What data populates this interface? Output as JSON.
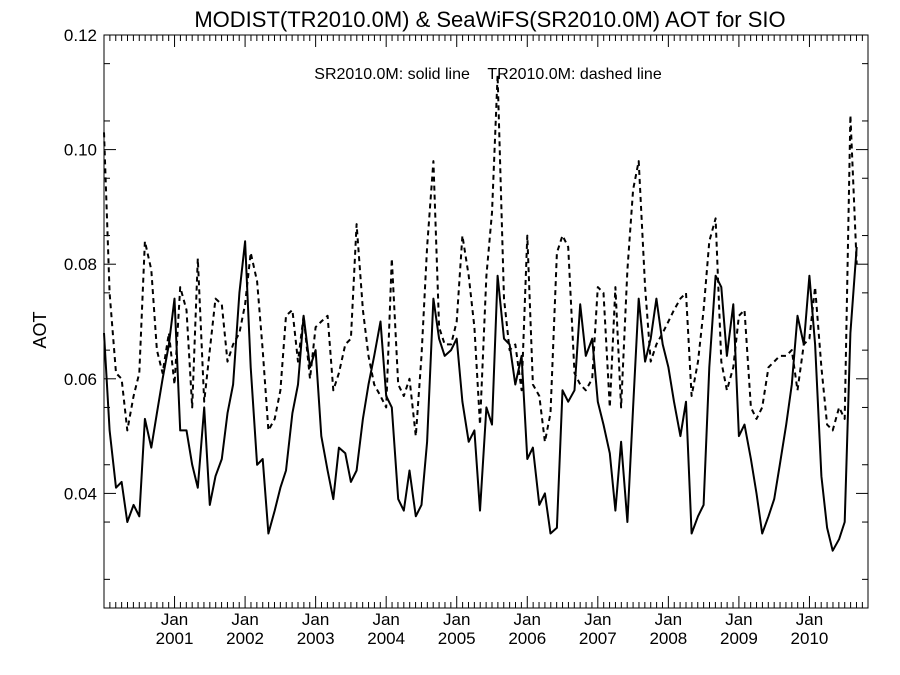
{
  "chart_data": {
    "type": "line",
    "title": "MODIST(TR2010.0M) & SeaWiFS(SR2010.0M)  AOT for SIO",
    "annotation": "SR2010.0M: solid line    TR2010.0M: dashed line",
    "ylabel": "AOT",
    "xlabel": "",
    "xlim": [
      2000.0,
      2010.83
    ],
    "ylim": [
      0.02,
      0.12
    ],
    "yticks": [
      {
        "value": 0.04,
        "label": "0.04"
      },
      {
        "value": 0.06,
        "label": "0.06"
      },
      {
        "value": 0.08,
        "label": "0.08"
      },
      {
        "value": 0.1,
        "label": "0.10"
      },
      {
        "value": 0.12,
        "label": "0.12"
      }
    ],
    "xticks": [
      {
        "value": 2001.0,
        "month": "Jan",
        "year": "2001"
      },
      {
        "value": 2002.0,
        "month": "Jan",
        "year": "2002"
      },
      {
        "value": 2003.0,
        "month": "Jan",
        "year": "2003"
      },
      {
        "value": 2004.0,
        "month": "Jan",
        "year": "2004"
      },
      {
        "value": 2005.0,
        "month": "Jan",
        "year": "2005"
      },
      {
        "value": 2006.0,
        "month": "Jan",
        "year": "2006"
      },
      {
        "value": 2007.0,
        "month": "Jan",
        "year": "2007"
      },
      {
        "value": 2008.0,
        "month": "Jan",
        "year": "2008"
      },
      {
        "value": 2009.0,
        "month": "Jan",
        "year": "2009"
      },
      {
        "value": 2010.0,
        "month": "Jan",
        "year": "2010"
      }
    ],
    "series": [
      {
        "style": "solid",
        "points": [
          [
            2000.0,
            0.068
          ],
          [
            2000.08,
            0.051
          ],
          [
            2000.17,
            0.041
          ],
          [
            2000.25,
            0.042
          ],
          [
            2000.33,
            0.035
          ],
          [
            2000.42,
            0.038
          ],
          [
            2000.5,
            0.036
          ],
          [
            2000.58,
            0.053
          ],
          [
            2000.67,
            0.048
          ],
          [
            2000.75,
            0.054
          ],
          [
            2000.83,
            0.06
          ],
          [
            2000.92,
            0.066
          ],
          [
            2001.0,
            0.074
          ],
          [
            2001.08,
            0.051
          ],
          [
            2001.17,
            0.051
          ],
          [
            2001.25,
            0.045
          ],
          [
            2001.33,
            0.041
          ],
          [
            2001.42,
            0.055
          ],
          [
            2001.5,
            0.038
          ],
          [
            2001.58,
            0.043
          ],
          [
            2001.67,
            0.046
          ],
          [
            2001.75,
            0.054
          ],
          [
            2001.83,
            0.059
          ],
          [
            2001.92,
            0.075
          ],
          [
            2002.0,
            0.084
          ],
          [
            2002.08,
            0.062
          ],
          [
            2002.17,
            0.045
          ],
          [
            2002.25,
            0.046
          ],
          [
            2002.33,
            0.033
          ],
          [
            2002.42,
            0.037
          ],
          [
            2002.5,
            0.041
          ],
          [
            2002.58,
            0.044
          ],
          [
            2002.67,
            0.054
          ],
          [
            2002.75,
            0.059
          ],
          [
            2002.83,
            0.071
          ],
          [
            2002.92,
            0.062
          ],
          [
            2003.0,
            0.065
          ],
          [
            2003.08,
            0.05
          ],
          [
            2003.17,
            0.044
          ],
          [
            2003.25,
            0.039
          ],
          [
            2003.33,
            0.048
          ],
          [
            2003.42,
            0.047
          ],
          [
            2003.5,
            0.042
          ],
          [
            2003.58,
            0.044
          ],
          [
            2003.67,
            0.053
          ],
          [
            2003.75,
            0.059
          ],
          [
            2003.83,
            0.064
          ],
          [
            2003.92,
            0.07
          ],
          [
            2004.0,
            0.057
          ],
          [
            2004.08,
            0.055
          ],
          [
            2004.17,
            0.039
          ],
          [
            2004.25,
            0.037
          ],
          [
            2004.33,
            0.044
          ],
          [
            2004.42,
            0.036
          ],
          [
            2004.5,
            0.038
          ],
          [
            2004.58,
            0.049
          ],
          [
            2004.67,
            0.074
          ],
          [
            2004.75,
            0.067
          ],
          [
            2004.83,
            0.064
          ],
          [
            2004.92,
            0.065
          ],
          [
            2005.0,
            0.067
          ],
          [
            2005.08,
            0.056
          ],
          [
            2005.17,
            0.049
          ],
          [
            2005.25,
            0.051
          ],
          [
            2005.33,
            0.037
          ],
          [
            2005.42,
            0.055
          ],
          [
            2005.5,
            0.052
          ],
          [
            2005.58,
            0.078
          ],
          [
            2005.67,
            0.067
          ],
          [
            2005.75,
            0.066
          ],
          [
            2005.83,
            0.059
          ],
          [
            2005.92,
            0.064
          ],
          [
            2006.0,
            0.046
          ],
          [
            2006.08,
            0.048
          ],
          [
            2006.17,
            0.038
          ],
          [
            2006.25,
            0.04
          ],
          [
            2006.33,
            0.033
          ],
          [
            2006.42,
            0.034
          ],
          [
            2006.5,
            0.058
          ],
          [
            2006.58,
            0.056
          ],
          [
            2006.67,
            0.058
          ],
          [
            2006.75,
            0.073
          ],
          [
            2006.83,
            0.064
          ],
          [
            2006.92,
            0.067
          ],
          [
            2007.0,
            0.056
          ],
          [
            2007.08,
            0.052
          ],
          [
            2007.17,
            0.047
          ],
          [
            2007.25,
            0.037
          ],
          [
            2007.33,
            0.049
          ],
          [
            2007.42,
            0.035
          ],
          [
            2007.5,
            0.055
          ],
          [
            2007.58,
            0.074
          ],
          [
            2007.67,
            0.063
          ],
          [
            2007.75,
            0.067
          ],
          [
            2007.83,
            0.074
          ],
          [
            2007.92,
            0.066
          ],
          [
            2008.0,
            0.062
          ],
          [
            2008.08,
            0.056
          ],
          [
            2008.17,
            0.05
          ],
          [
            2008.25,
            0.056
          ],
          [
            2008.33,
            0.033
          ],
          [
            2008.42,
            0.036
          ],
          [
            2008.5,
            0.038
          ],
          [
            2008.58,
            0.062
          ],
          [
            2008.67,
            0.078
          ],
          [
            2008.75,
            0.076
          ],
          [
            2008.83,
            0.064
          ],
          [
            2008.92,
            0.073
          ],
          [
            2009.0,
            0.05
          ],
          [
            2009.08,
            0.052
          ],
          [
            2009.17,
            0.046
          ],
          [
            2009.25,
            0.04
          ],
          [
            2009.33,
            0.033
          ],
          [
            2009.42,
            0.036
          ],
          [
            2009.5,
            0.039
          ],
          [
            2009.58,
            0.045
          ],
          [
            2009.67,
            0.052
          ],
          [
            2009.75,
            0.059
          ],
          [
            2009.83,
            0.071
          ],
          [
            2009.92,
            0.066
          ],
          [
            2010.0,
            0.078
          ],
          [
            2010.08,
            0.066
          ],
          [
            2010.17,
            0.043
          ],
          [
            2010.25,
            0.034
          ],
          [
            2010.33,
            0.03
          ],
          [
            2010.42,
            0.032
          ],
          [
            2010.5,
            0.035
          ],
          [
            2010.58,
            0.068
          ],
          [
            2010.67,
            0.083
          ]
        ]
      },
      {
        "style": "dashed",
        "points": [
          [
            2000.0,
            0.103
          ],
          [
            2000.08,
            0.075
          ],
          [
            2000.17,
            0.061
          ],
          [
            2000.25,
            0.06
          ],
          [
            2000.33,
            0.051
          ],
          [
            2000.42,
            0.057
          ],
          [
            2000.5,
            0.061
          ],
          [
            2000.58,
            0.084
          ],
          [
            2000.67,
            0.079
          ],
          [
            2000.75,
            0.065
          ],
          [
            2000.83,
            0.061
          ],
          [
            2000.92,
            0.068
          ],
          [
            2001.0,
            0.059
          ],
          [
            2001.08,
            0.076
          ],
          [
            2001.17,
            0.072
          ],
          [
            2001.25,
            0.055
          ],
          [
            2001.33,
            0.081
          ],
          [
            2001.42,
            0.056
          ],
          [
            2001.5,
            0.065
          ],
          [
            2001.58,
            0.074
          ],
          [
            2001.67,
            0.073
          ],
          [
            2001.75,
            0.063
          ],
          [
            2001.83,
            0.066
          ],
          [
            2001.92,
            0.068
          ],
          [
            2002.0,
            0.073
          ],
          [
            2002.08,
            0.082
          ],
          [
            2002.17,
            0.077
          ],
          [
            2002.25,
            0.065
          ],
          [
            2002.33,
            0.051
          ],
          [
            2002.42,
            0.053
          ],
          [
            2002.5,
            0.058
          ],
          [
            2002.58,
            0.071
          ],
          [
            2002.67,
            0.072
          ],
          [
            2002.75,
            0.063
          ],
          [
            2002.83,
            0.071
          ],
          [
            2002.92,
            0.06
          ],
          [
            2003.0,
            0.069
          ],
          [
            2003.08,
            0.07
          ],
          [
            2003.17,
            0.071
          ],
          [
            2003.25,
            0.058
          ],
          [
            2003.33,
            0.061
          ],
          [
            2003.42,
            0.066
          ],
          [
            2003.5,
            0.067
          ],
          [
            2003.58,
            0.087
          ],
          [
            2003.67,
            0.072
          ],
          [
            2003.75,
            0.064
          ],
          [
            2003.83,
            0.059
          ],
          [
            2003.92,
            0.057
          ],
          [
            2004.0,
            0.055
          ],
          [
            2004.08,
            0.081
          ],
          [
            2004.17,
            0.059
          ],
          [
            2004.25,
            0.057
          ],
          [
            2004.33,
            0.06
          ],
          [
            2004.42,
            0.05
          ],
          [
            2004.5,
            0.064
          ],
          [
            2004.58,
            0.083
          ],
          [
            2004.67,
            0.098
          ],
          [
            2004.75,
            0.069
          ],
          [
            2004.83,
            0.066
          ],
          [
            2004.92,
            0.066
          ],
          [
            2005.0,
            0.07
          ],
          [
            2005.08,
            0.085
          ],
          [
            2005.17,
            0.078
          ],
          [
            2005.25,
            0.069
          ],
          [
            2005.33,
            0.052
          ],
          [
            2005.42,
            0.078
          ],
          [
            2005.5,
            0.089
          ],
          [
            2005.58,
            0.113
          ],
          [
            2005.67,
            0.074
          ],
          [
            2005.75,
            0.065
          ],
          [
            2005.83,
            0.066
          ],
          [
            2005.92,
            0.058
          ],
          [
            2006.0,
            0.085
          ],
          [
            2006.08,
            0.059
          ],
          [
            2006.17,
            0.057
          ],
          [
            2006.25,
            0.049
          ],
          [
            2006.33,
            0.054
          ],
          [
            2006.42,
            0.082
          ],
          [
            2006.5,
            0.085
          ],
          [
            2006.58,
            0.083
          ],
          [
            2006.67,
            0.061
          ],
          [
            2006.75,
            0.059
          ],
          [
            2006.83,
            0.058
          ],
          [
            2006.92,
            0.06
          ],
          [
            2007.0,
            0.076
          ],
          [
            2007.08,
            0.075
          ],
          [
            2007.17,
            0.055
          ],
          [
            2007.25,
            0.076
          ],
          [
            2007.33,
            0.055
          ],
          [
            2007.42,
            0.079
          ],
          [
            2007.5,
            0.093
          ],
          [
            2007.58,
            0.098
          ],
          [
            2007.67,
            0.076
          ],
          [
            2007.75,
            0.063
          ],
          [
            2007.83,
            0.066
          ],
          [
            2007.92,
            0.068
          ],
          [
            2008.0,
            0.07
          ],
          [
            2008.08,
            0.072
          ],
          [
            2008.17,
            0.074
          ],
          [
            2008.25,
            0.075
          ],
          [
            2008.33,
            0.057
          ],
          [
            2008.42,
            0.063
          ],
          [
            2008.5,
            0.072
          ],
          [
            2008.58,
            0.084
          ],
          [
            2008.67,
            0.088
          ],
          [
            2008.75,
            0.063
          ],
          [
            2008.83,
            0.058
          ],
          [
            2008.92,
            0.062
          ],
          [
            2009.0,
            0.071
          ],
          [
            2009.08,
            0.072
          ],
          [
            2009.17,
            0.055
          ],
          [
            2009.25,
            0.053
          ],
          [
            2009.33,
            0.055
          ],
          [
            2009.42,
            0.062
          ],
          [
            2009.5,
            0.063
          ],
          [
            2009.58,
            0.064
          ],
          [
            2009.67,
            0.064
          ],
          [
            2009.75,
            0.065
          ],
          [
            2009.83,
            0.058
          ],
          [
            2009.92,
            0.066
          ],
          [
            2010.0,
            0.067
          ],
          [
            2010.08,
            0.076
          ],
          [
            2010.17,
            0.062
          ],
          [
            2010.25,
            0.052
          ],
          [
            2010.33,
            0.051
          ],
          [
            2010.42,
            0.055
          ],
          [
            2010.5,
            0.053
          ],
          [
            2010.58,
            0.106
          ],
          [
            2010.67,
            0.08
          ]
        ]
      }
    ]
  }
}
